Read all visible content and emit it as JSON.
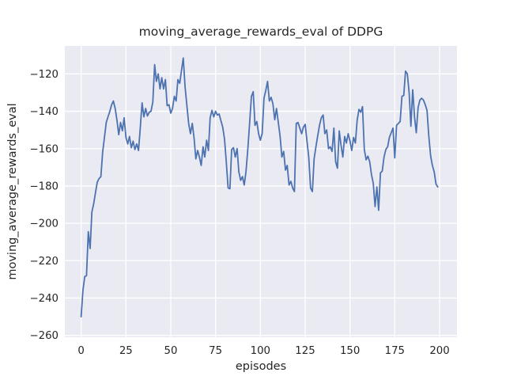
{
  "figure": {
    "background": "#ffffff"
  },
  "chart_data": {
    "type": "line",
    "title": "moving_average_rewards_eval of DDPG",
    "xlabel": "episodes",
    "ylabel": "moving_average_rewards_eval",
    "grid": true,
    "legend": "none",
    "x_start": 0,
    "x_step": 1,
    "xticks": [
      0,
      25,
      50,
      75,
      100,
      125,
      150,
      175,
      200
    ],
    "xtick_labels": [
      "0",
      "25",
      "50",
      "75",
      "100",
      "125",
      "150",
      "175",
      "200"
    ],
    "yticks": [
      -120,
      -140,
      -160,
      -180,
      -200,
      -220,
      -240,
      -260
    ],
    "ytick_labels": [
      "−120",
      "−140",
      "−160",
      "−180",
      "−200",
      "−220",
      "−240",
      "−260"
    ],
    "xlim": [
      -9.1,
      209.7
    ],
    "ylim": [
      -261,
      -105
    ],
    "style": {
      "plot_bg": "#eaeaf2",
      "grid_color": "#ffffff",
      "fig_bg": "#ffffff",
      "text_color": "#262626",
      "line_color": "#4c72b0"
    },
    "series": [
      {
        "name": "moving_average_rewards_eval",
        "color": "#4c72b0",
        "values": [
          -250,
          -236,
          -228.5,
          -228,
          -204.5,
          -213.5,
          -194,
          -189.5,
          -183.5,
          -178,
          -176,
          -175,
          -162,
          -154,
          -146,
          -143,
          -140,
          -136.5,
          -134.5,
          -138.5,
          -145,
          -152.5,
          -146,
          -150.5,
          -143.5,
          -154,
          -157.5,
          -153.5,
          -159.5,
          -156,
          -160.5,
          -157.5,
          -161,
          -149,
          -135.5,
          -143,
          -138.5,
          -142.5,
          -140.5,
          -140,
          -135,
          -115,
          -124,
          -120,
          -128,
          -122,
          -128,
          -123,
          -137,
          -136.5,
          -141,
          -138.5,
          -132,
          -134.5,
          -123,
          -125,
          -118,
          -111.5,
          -127,
          -137,
          -146.5,
          -152,
          -146.5,
          -154,
          -165.5,
          -161,
          -164.5,
          -169,
          -159,
          -164.5,
          -155.5,
          -161,
          -143.5,
          -139.5,
          -143,
          -140,
          -142,
          -141.5,
          -145,
          -148.5,
          -155,
          -167,
          -181,
          -181.5,
          -160.5,
          -159.5,
          -164.5,
          -160,
          -172.5,
          -177,
          -175,
          -179.5,
          -172,
          -160,
          -146.5,
          -132,
          -129.5,
          -147.5,
          -145.5,
          -152,
          -155.5,
          -152,
          -133,
          -129,
          -124,
          -134.5,
          -132.5,
          -136,
          -144.5,
          -138.5,
          -146,
          -153.5,
          -164.5,
          -161.5,
          -171.5,
          -169,
          -179.5,
          -177.5,
          -181,
          -183,
          -146.5,
          -146,
          -149,
          -152,
          -148.5,
          -147,
          -156,
          -164.5,
          -181,
          -183,
          -165.5,
          -159,
          -153,
          -147.5,
          -143.5,
          -142,
          -152,
          -150,
          -160,
          -159,
          -161.5,
          -149,
          -167,
          -170.5,
          -150.5,
          -158,
          -164.5,
          -153.5,
          -157,
          -152,
          -156,
          -161,
          -154,
          -157,
          -145,
          -139,
          -140.5,
          -137.5,
          -160.5,
          -166,
          -164,
          -167,
          -174,
          -178.5,
          -191,
          -180.5,
          -193,
          -173,
          -172,
          -164.5,
          -160.5,
          -159,
          -154,
          -151.5,
          -149,
          -165,
          -147.5,
          -146.5,
          -145.5,
          -132,
          -131.5,
          -118.5,
          -120,
          -130,
          -148,
          -128.5,
          -143,
          -151.5,
          -138,
          -134,
          -133,
          -134,
          -136.5,
          -139.5,
          -153.5,
          -164,
          -169,
          -172.5,
          -179,
          -180.5
        ]
      }
    ]
  }
}
